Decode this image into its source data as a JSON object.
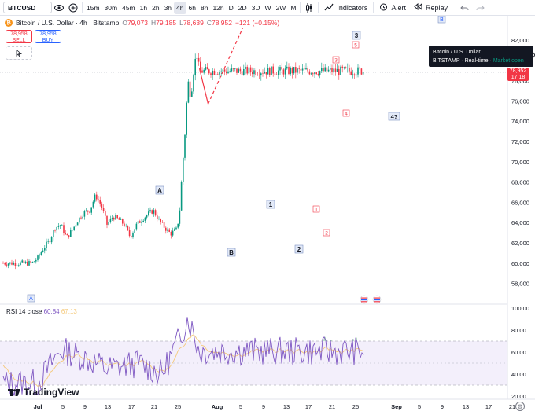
{
  "toolbar": {
    "symbol": "BTCUSD",
    "timeframes": [
      "15m",
      "30m",
      "45m",
      "1h",
      "2h",
      "3h",
      "4h",
      "6h",
      "8h",
      "12h",
      "D",
      "2D",
      "3D",
      "W",
      "2W",
      "M"
    ],
    "active_timeframe": "4h",
    "indicators_label": "Indicators",
    "alert_label": "Alert",
    "replay_label": "Replay",
    "icons": [
      "eye-icon",
      "plus-circle-icon",
      "candle-type-icon",
      "chevron-down-icon",
      "indicators-icon",
      "alarm-clock-icon",
      "replay-icon",
      "undo-icon",
      "redo-icon"
    ]
  },
  "legend": {
    "title": "Bitcoin / U.S. Dollar · 4h · Bitstamp",
    "o_label": "O",
    "o": "79,073",
    "h_label": "H",
    "h": "79,185",
    "l_label": "L",
    "l": "78,639",
    "c_label": "C",
    "c": "78,952",
    "change": "−121 (−0.15%)"
  },
  "trade": {
    "sell_price": "78,958",
    "sell_label": "SELL",
    "buy_price": "78,958",
    "buy_label": "BUY"
  },
  "tooltip": {
    "line1": "Bitcoin / U.S. Dollar",
    "exchange": "BITSTAMP",
    "dot": "·",
    "realtime": "Real-time",
    "market": "Market open"
  },
  "price_tag": {
    "price": "78,952",
    "countdown": "17:18"
  },
  "price_axis": [
    "82,000",
    "80,000",
    "78,000",
    "76,000",
    "74,000",
    "72,000",
    "70,000",
    "68,000",
    "66,000",
    "64,000",
    "62,000",
    "60,000",
    "58,000"
  ],
  "rsi_axis": [
    "100.00",
    "80.00",
    "60.00",
    "40.00",
    "20.00"
  ],
  "rsi": {
    "label": "RSI 14 close",
    "value": "60.84",
    "ma_value": "67.13"
  },
  "time_axis": [
    "Jul",
    "5",
    "9",
    "13",
    "17",
    "21",
    "25",
    "Aug",
    "5",
    "9",
    "13",
    "17",
    "21",
    "25",
    "Sep",
    "5",
    "9",
    "13",
    "17",
    "21"
  ],
  "wave_labels": {
    "A_top": "A",
    "B": "B",
    "A_bottom": "A",
    "w1": "1",
    "w2": "2",
    "w3": "3",
    "w4": "4?",
    "B_right": "B",
    "s1": "1",
    "s2": "2",
    "s3": "3",
    "s4": "4",
    "s5": "5"
  },
  "logo": "TradingView",
  "colors": {
    "up": "#089981",
    "down": "#f23645",
    "rsi": "#7e57c2",
    "rsi_ma": "#f5c97a",
    "wave": "#f23645"
  },
  "chart_data": {
    "type": "candlestick",
    "symbol": "BTCUSD",
    "interval": "4h",
    "ylim": [
      57000,
      83500
    ],
    "rsi_ylim": [
      10,
      105
    ],
    "close_points": [
      {
        "x": "Jun 29",
        "y": 60000
      },
      {
        "x": "Jul 1",
        "y": 60500
      },
      {
        "x": "Jul 3",
        "y": 61500
      },
      {
        "x": "Jul 5",
        "y": 62200
      },
      {
        "x": "Jul 7",
        "y": 63500
      },
      {
        "x": "Jul 9",
        "y": 63800
      },
      {
        "x": "Jul 11",
        "y": 62500
      },
      {
        "x": "Jul 13",
        "y": 63300
      },
      {
        "x": "Jul 15",
        "y": 64300
      },
      {
        "x": "Jul 17",
        "y": 65000
      },
      {
        "x": "Jul 19",
        "y": 65200
      },
      {
        "x": "Jul 21",
        "y": 66700
      },
      {
        "x": "Jul 23",
        "y": 65700
      },
      {
        "x": "Jul 25",
        "y": 63800
      },
      {
        "x": "Jul 27",
        "y": 64600
      },
      {
        "x": "Jul 29",
        "y": 64300
      },
      {
        "x": "Jul 31",
        "y": 63800
      },
      {
        "x": "Aug 2",
        "y": 62600
      },
      {
        "x": "Aug 4",
        "y": 63700
      },
      {
        "x": "Aug 6",
        "y": 64300
      },
      {
        "x": "Aug 8",
        "y": 64800
      },
      {
        "x": "Aug 10",
        "y": 65200
      },
      {
        "x": "Aug 12",
        "y": 64200
      },
      {
        "x": "Aug 14",
        "y": 63500
      },
      {
        "x": "Aug 16",
        "y": 62900
      },
      {
        "x": "Aug 18",
        "y": 63300
      },
      {
        "x": "Aug 19",
        "y": 64600
      },
      {
        "x": "Aug 20",
        "y": 69000
      },
      {
        "x": "Aug 21",
        "y": 73000
      },
      {
        "x": "Aug 22",
        "y": 78000
      },
      {
        "x": "Aug 23",
        "y": 76500
      },
      {
        "x": "Aug 24",
        "y": 79000
      },
      {
        "x": "Aug 25",
        "y": 80800
      },
      {
        "x": "Aug 26",
        "y": 78952
      }
    ],
    "projection": [
      {
        "x": "Aug 26",
        "y": 79200
      },
      {
        "x": "Aug 29",
        "y": 75700
      },
      {
        "x": "Sep 10",
        "y": 83200
      }
    ],
    "rsi_points": [
      {
        "x": "Jul",
        "y": 32
      },
      {
        "x": "Jul 9",
        "y": 62
      },
      {
        "x": "Jul 17",
        "y": 55
      },
      {
        "x": "Jul 25",
        "y": 45
      },
      {
        "x": "Aug 5",
        "y": 50
      },
      {
        "x": "Aug 13",
        "y": 40
      },
      {
        "x": "Aug 19",
        "y": 72
      },
      {
        "x": "Aug 22",
        "y": 92
      },
      {
        "x": "Aug 26",
        "y": 60.84
      }
    ]
  }
}
